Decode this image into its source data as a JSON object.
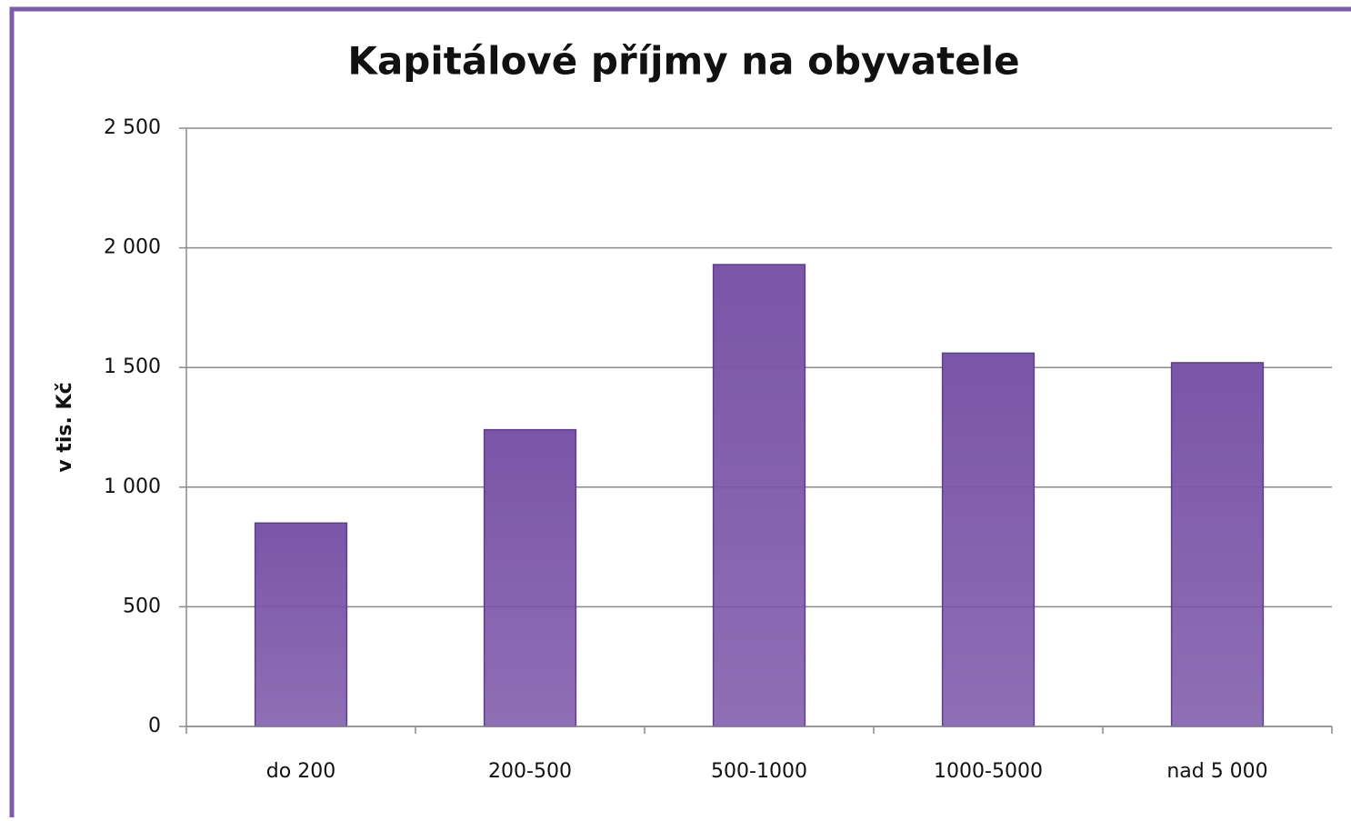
{
  "chart_data": {
    "type": "bar",
    "title": "Kapitálové příjmy na obyvatele",
    "y_label": "v tis. Kč",
    "categories": [
      "do 200",
      "200-500",
      "500-1000",
      "1000-5000",
      "nad 5 000"
    ],
    "values": [
      850,
      1240,
      1930,
      1560,
      1520
    ],
    "color": "#7b55a8",
    "ylim": [
      0,
      2500
    ],
    "yticks": [
      0,
      500,
      {
        "value": 1000,
        "label": "1 000"
      },
      {
        "value": 1500,
        "label": "1 500"
      },
      {
        "value": 2000,
        "label": "2 000"
      },
      {
        "value": 2500,
        "label": "2 500"
      }
    ],
    "grid": true
  }
}
